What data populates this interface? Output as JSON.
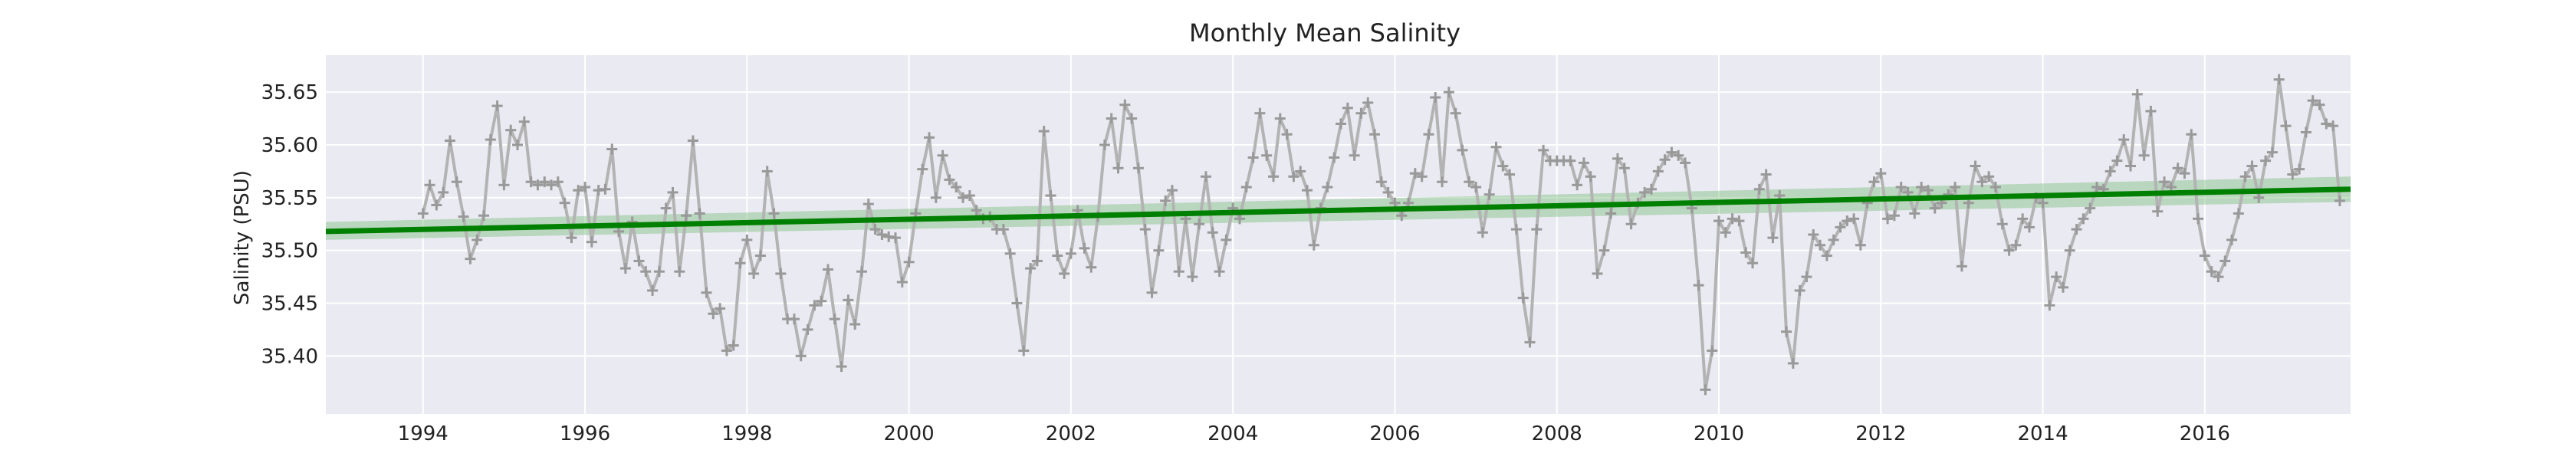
{
  "chart_data": {
    "type": "line",
    "title": "Monthly Mean Salinity",
    "xlabel": "",
    "ylabel": "Salinity (PSU)",
    "xlim": [
      1992.8,
      2017.8
    ],
    "ylim": [
      35.345,
      35.685
    ],
    "x_ticks": [
      1994,
      1996,
      1998,
      2000,
      2002,
      2004,
      2006,
      2008,
      2010,
      2012,
      2014,
      2016
    ],
    "x_tick_labels": [
      "1994",
      "1996",
      "1998",
      "2000",
      "2002",
      "2004",
      "2006",
      "2008",
      "2010",
      "2012",
      "2014",
      "2016"
    ],
    "y_ticks": [
      35.4,
      35.45,
      35.5,
      35.55,
      35.6,
      35.65
    ],
    "y_tick_labels": [
      "35.40",
      "35.45",
      "35.50",
      "35.55",
      "35.60",
      "35.65"
    ],
    "grid": true,
    "background": "#eaeaf2",
    "series": [
      {
        "kind": "monthly-means",
        "color": "#b3b3b3",
        "marker": "plus",
        "start": "1994-01",
        "frequency": "monthly",
        "y": [
          35.535,
          35.562,
          35.543,
          35.555,
          35.604,
          35.565,
          35.532,
          35.492,
          35.51,
          35.533,
          35.605,
          35.637,
          35.562,
          35.614,
          35.6,
          35.622,
          35.565,
          35.562,
          35.565,
          35.562,
          35.565,
          35.545,
          35.512,
          35.557,
          35.56,
          35.508,
          35.557,
          35.558,
          35.596,
          35.518,
          35.483,
          35.527,
          35.49,
          35.48,
          35.462,
          35.48,
          35.54,
          35.555,
          35.48,
          35.533,
          35.604,
          35.535,
          35.46,
          35.44,
          35.445,
          35.405,
          35.41,
          35.488,
          35.51,
          35.478,
          35.495,
          35.575,
          35.535,
          35.478,
          35.435,
          35.435,
          35.4,
          35.425,
          35.448,
          35.452,
          35.482,
          35.435,
          35.39,
          35.453,
          35.43,
          35.48,
          35.544,
          35.52,
          35.515,
          35.513,
          35.512,
          35.47,
          35.489,
          35.535,
          35.577,
          35.607,
          35.55,
          35.59,
          35.567,
          35.56,
          35.55,
          35.552,
          35.538,
          35.53,
          35.532,
          35.52,
          35.52,
          35.497,
          35.45,
          35.405,
          35.483,
          35.49,
          35.613,
          35.552,
          35.495,
          35.478,
          35.497,
          35.538,
          35.502,
          35.484,
          35.532,
          35.6,
          35.625,
          35.578,
          35.638,
          35.625,
          35.578,
          35.52,
          35.46,
          35.5,
          35.547,
          35.557,
          35.48,
          35.53,
          35.475,
          35.525,
          35.57,
          35.517,
          35.48,
          35.51,
          35.54,
          35.53,
          35.56,
          35.588,
          35.63,
          35.59,
          35.57,
          35.625,
          35.61,
          35.57,
          35.575,
          35.557,
          35.505,
          35.54,
          35.56,
          35.588,
          35.62,
          35.635,
          35.59,
          35.63,
          35.64,
          35.61,
          35.565,
          35.555,
          35.545,
          35.533,
          35.545,
          35.573,
          35.57,
          35.61,
          35.645,
          35.565,
          35.65,
          35.63,
          35.595,
          35.565,
          35.56,
          35.517,
          35.553,
          35.598,
          35.58,
          35.572,
          35.52,
          35.455,
          35.413,
          35.52,
          35.595,
          35.585,
          35.585,
          35.585,
          35.585,
          35.562,
          35.583,
          35.57,
          35.478,
          35.5,
          35.535,
          35.587,
          35.578,
          35.525,
          35.545,
          35.555,
          35.558,
          35.575,
          35.586,
          35.593,
          35.59,
          35.583,
          35.54,
          35.467,
          35.368,
          35.405,
          35.528,
          35.517,
          35.53,
          35.528,
          35.498,
          35.488,
          35.558,
          35.572,
          35.512,
          35.552,
          35.423,
          35.393,
          35.462,
          35.475,
          35.515,
          35.505,
          35.495,
          35.51,
          35.522,
          35.528,
          35.53,
          35.505,
          35.545,
          35.565,
          35.573,
          35.53,
          35.533,
          35.56,
          35.555,
          35.535,
          35.56,
          35.557,
          35.54,
          35.545,
          35.553,
          35.56,
          35.485,
          35.545,
          35.58,
          35.565,
          35.57,
          35.56,
          35.525,
          35.5,
          35.505,
          35.53,
          35.522,
          35.55,
          35.545,
          35.448,
          35.475,
          35.465,
          35.5,
          35.52,
          35.53,
          35.54,
          35.56,
          35.558,
          35.575,
          35.585,
          35.605,
          35.58,
          35.648,
          35.59,
          35.632,
          35.537,
          35.565,
          35.56,
          35.578,
          35.573,
          35.61,
          35.53,
          35.495,
          35.48,
          35.475,
          35.49,
          35.51,
          35.535,
          35.57,
          35.58,
          35.55,
          35.585,
          35.593,
          35.662,
          35.618,
          35.572,
          35.577,
          35.612,
          35.642,
          35.638,
          35.62,
          35.618,
          35.547
        ]
      },
      {
        "kind": "linear-trend",
        "color": "#008000",
        "x": [
          1992.8,
          2017.8
        ],
        "y": [
          35.518,
          35.558
        ],
        "band_color": "#7fbf7f",
        "band_lower": [
          35.51,
          35.546
        ],
        "band_upper": [
          35.527,
          35.57
        ]
      }
    ]
  }
}
